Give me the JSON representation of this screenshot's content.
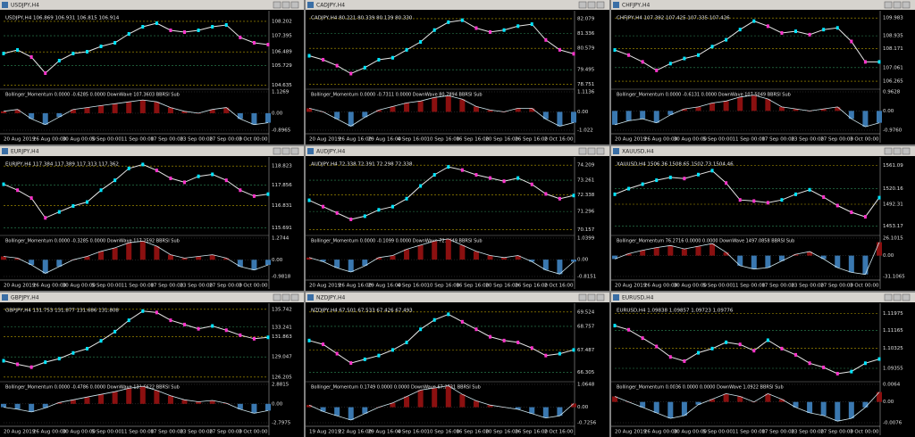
{
  "windows": [
    {
      "title": "USDJPY,H4",
      "header": "USDJPY,H4 106.869 106.931 106.815 106.914",
      "ylim": [
        104.5,
        108.6
      ],
      "yticks": [
        108.202,
        107.395,
        106.489,
        105.729,
        104.635
      ],
      "price": [
        106.4,
        106.6,
        106.2,
        105.3,
        106.0,
        106.4,
        106.5,
        106.8,
        107.0,
        107.5,
        107.9,
        108.1,
        107.7,
        107.6,
        107.7,
        107.9,
        108.0,
        107.3,
        107.0,
        106.9
      ],
      "indicator_header": "Bollinger_Momentum 0.0000 -0.6285 0.0000 DownWave 107.3603 BBRSI Sub",
      "indicator_ticks": [
        1.1269,
        {
          "value": 0,
          "label": "0.00"
        },
        -0.8965
      ],
      "momentum": [
        0.1,
        0.2,
        -0.3,
        -0.6,
        -0.2,
        0.2,
        0.3,
        0.4,
        0.5,
        0.6,
        0.7,
        0.6,
        0.3,
        0.1,
        0.0,
        0.2,
        0.3,
        -0.3,
        -0.6,
        -0.5
      ],
      "dates": [
        "20 Aug 2019",
        "26 Aug 00:00",
        "30 Aug 00:00",
        "5 Sep 00:00",
        "11 Sep 00:00",
        "17 Sep 00:00",
        "23 Sep 00:00",
        "27 Sep 00:00",
        "3 Oct 00:00"
      ]
    },
    {
      "title": "CADJPY,H4",
      "header": "CADJPY,H4 80.221 80.339 80.139 80.330",
      "ylim": [
        78.6,
        82.3
      ],
      "yticks": [
        82.079,
        81.336,
        80.579,
        79.495,
        78.751
      ],
      "price": [
        80.2,
        80.0,
        79.7,
        79.3,
        79.6,
        80.0,
        80.1,
        80.5,
        80.9,
        81.5,
        81.9,
        82.0,
        81.6,
        81.4,
        81.5,
        81.7,
        81.8,
        81.0,
        80.5,
        80.3
      ],
      "indicator_header": "Bollinger_Momentum 0.0000 -0.7311 0.0000 DownWave 80.7894 BBRSI Sub",
      "indicator_ticks": [
        1.1136,
        {
          "value": 0,
          "label": "0.00"
        },
        -1.022
      ],
      "momentum": [
        0.2,
        0.0,
        -0.4,
        -0.8,
        -0.3,
        0.1,
        0.3,
        0.5,
        0.6,
        0.8,
        0.9,
        0.7,
        0.3,
        0.1,
        0.0,
        0.2,
        0.2,
        -0.4,
        -0.8,
        -0.6
      ],
      "dates": [
        "20 Aug 2019",
        "26 Aug 16:00",
        "29 Aug 16:00",
        "4 Sep 16:00",
        "10 Sep 16:00",
        "16 Sep 16:00",
        "20 Sep 16:00",
        "26 Sep 16:00",
        "2 Oct 16:00"
      ]
    },
    {
      "title": "CHFJPY,H4",
      "header": "CHFJPY,H4 107.392 107.425 107.335 107.426",
      "ylim": [
        105.9,
        110.2
      ],
      "yticks": [
        109.983,
        108.935,
        108.171,
        107.061,
        106.265
      ],
      "price": [
        108.1,
        107.8,
        107.4,
        106.9,
        107.3,
        107.6,
        107.8,
        108.3,
        108.7,
        109.3,
        109.8,
        109.5,
        109.1,
        109.2,
        109.0,
        109.3,
        109.4,
        108.6,
        107.4,
        107.4
      ],
      "indicator_header": "Bollinger_Momentum 0.0000 -0.6131 0.0000 DownWave 107.5049 BBRSI Sub",
      "indicator_ticks": [
        0.9628,
        {
          "value": 0,
          "label": "0.00"
        },
        {
          "value": -0.976,
          "label": "-0.9760"
        }
      ],
      "momentum": [
        -0.7,
        -0.5,
        -0.4,
        -0.6,
        -0.2,
        0.1,
        0.2,
        0.4,
        0.5,
        0.7,
        0.8,
        0.6,
        0.2,
        0.1,
        0.0,
        0.1,
        0.2,
        -0.4,
        -0.8,
        -0.6
      ],
      "dates": [
        "20 Aug 2019",
        "26 Aug 00:00",
        "30 Aug 00:00",
        "5 Sep 00:00",
        "11 Sep 00:00",
        "17 Sep 00:00",
        "23 Sep 00:00",
        "27 Sep 00:00",
        "3 Oct 00:00"
      ]
    },
    {
      "title": "EURJPY,H4",
      "header": "EURJPY,H4 117.384 117.389 117.313 117.362",
      "ylim": [
        115.4,
        119.1
      ],
      "yticks": [
        118.823,
        117.856,
        116.831,
        115.691
      ],
      "price": [
        117.9,
        117.6,
        117.2,
        116.2,
        116.5,
        116.8,
        117.0,
        117.6,
        118.1,
        118.7,
        118.9,
        118.6,
        118.2,
        118.0,
        118.3,
        118.4,
        118.1,
        117.6,
        117.3,
        117.4
      ],
      "indicator_header": "Bollinger_Momentum 0.0000 -0.3285 0.0000 DownWave 117.2592 BBRSI Sub",
      "indicator_ticks": [
        1.2744,
        {
          "value": 0,
          "label": "0.00"
        },
        -0.9818
      ],
      "momentum": [
        0.2,
        0.1,
        -0.3,
        -0.8,
        -0.4,
        0.0,
        0.2,
        0.5,
        0.7,
        1.0,
        1.1,
        0.8,
        0.3,
        0.1,
        0.2,
        0.3,
        0.1,
        -0.4,
        -0.6,
        -0.3
      ],
      "dates": [
        "20 Aug 2019",
        "26 Aug 00:00",
        "30 Aug 00:00",
        "5 Sep 00:00",
        "11 Sep 00:00",
        "17 Sep 00:00",
        "23 Sep 00:00",
        "27 Sep 00:00",
        "3 Oct 00:00"
      ]
    },
    {
      "title": "AUDJPY,H4",
      "header": "AUDJPY,H4 72.338 72.391 72.298 72.338",
      "ylim": [
        69.9,
        74.5
      ],
      "yticks": [
        74.209,
        73.261,
        72.338,
        71.296,
        70.157
      ],
      "price": [
        72.0,
        71.6,
        71.2,
        70.8,
        71.0,
        71.4,
        71.6,
        72.1,
        72.9,
        73.6,
        74.1,
        73.9,
        73.6,
        73.4,
        73.2,
        73.4,
        73.0,
        72.4,
        72.1,
        72.3
      ],
      "indicator_header": "Bollinger_Momentum 0.0000 -0.1099 0.0000 DownWave 72.6449 BBRSI Sub",
      "indicator_ticks": [
        1.0399,
        {
          "value": 0,
          "label": "0.00"
        },
        -0.8151
      ],
      "momentum": [
        0.1,
        -0.1,
        -0.4,
        -0.6,
        -0.3,
        0.1,
        0.2,
        0.5,
        0.7,
        0.9,
        1.0,
        0.7,
        0.4,
        0.2,
        0.1,
        0.2,
        -0.1,
        -0.5,
        -0.7,
        -0.1
      ],
      "dates": [
        "20 Aug 2019",
        "26 Aug 16:00",
        "29 Aug 16:00",
        "4 Sep 16:00",
        "10 Sep 16:00",
        "16 Sep 16:00",
        "20 Sep 16:00",
        "26 Sep 16:00",
        "2 Oct 16:00"
      ]
    },
    {
      "title": "XAUUSD,H4",
      "header": "XAUUSD,H4 1506.36 1508.65 1502.73 1504.46",
      "ylim": [
        1440,
        1570
      ],
      "yticks": [
        1561.09,
        1520.16,
        1492.31,
        1453.17
      ],
      "price": [
        1510,
        1520,
        1528,
        1535,
        1540,
        1538,
        1545,
        1552,
        1530,
        1500,
        1498,
        1495,
        1500,
        1510,
        1518,
        1505,
        1490,
        1478,
        1470,
        1504
      ],
      "indicator_header": "Bollinger_Momentum 76.2716 0.0000 0.0000 DownWave 1497.0858 BBRSI Sub",
      "indicator_ticks": [
        26.1015,
        {
          "value": 0,
          "label": "0.00"
        },
        -31.1065
      ],
      "momentum": [
        -5,
        3,
        8,
        12,
        15,
        10,
        14,
        18,
        5,
        -15,
        -20,
        -18,
        -8,
        2,
        6,
        -5,
        -18,
        -25,
        -28,
        20
      ],
      "dates": [
        "20 Aug 2019",
        "26 Aug 00:00",
        "30 Aug 00:00",
        "5 Sep 00:00",
        "11 Sep 00:00",
        "17 Sep 00:00",
        "23 Sep 00:00",
        "27 Sep 00:00",
        "3 Oct 00:00"
      ]
    },
    {
      "title": "GBPJPY,H4",
      "header": "GBPJPY,H4 131.753 131.877 131.686 131.808",
      "ylim": [
        125.8,
        136.1
      ],
      "yticks": [
        135.742,
        133.241,
        131.863,
        129.047,
        126.205
      ],
      "price": [
        128.5,
        128.0,
        127.6,
        128.3,
        128.8,
        129.6,
        130.2,
        131.3,
        132.6,
        134.2,
        135.5,
        135.3,
        134.2,
        133.6,
        133.0,
        133.4,
        132.8,
        132.1,
        131.6,
        131.8
      ],
      "indicator_header": "Bollinger_Momentum 0.0000 -0.4786 0.0000 DownWave 131.6622 BBRSI Sub",
      "indicator_ticks": [
        2.8815,
        {
          "value": 0,
          "label": "0.00"
        },
        -2.7975
      ],
      "momentum": [
        -0.5,
        -0.8,
        -1.2,
        -0.6,
        0.2,
        0.6,
        1.0,
        1.4,
        1.8,
        2.3,
        2.6,
        2.0,
        1.2,
        0.6,
        0.3,
        0.5,
        0.1,
        -0.8,
        -1.4,
        -1.0
      ],
      "dates": [
        "20 Aug 2019",
        "26 Aug 00:00",
        "30 Aug 00:00",
        "5 Sep 00:00",
        "11 Sep 00:00",
        "17 Sep 00:00",
        "23 Sep 00:00",
        "27 Sep 00:00",
        "3 Oct 00:00"
      ]
    },
    {
      "title": "NZDJPY,H4",
      "header": "NZDJPY,H4 67.501 67.533 67.426 67.493",
      "ylim": [
        65.9,
        69.8
      ],
      "yticks": [
        69.524,
        68.757,
        67.487,
        66.305
      ],
      "price": [
        68.0,
        67.8,
        67.3,
        66.8,
        67.0,
        67.2,
        67.5,
        67.9,
        68.6,
        69.1,
        69.4,
        69.0,
        68.6,
        68.2,
        68.0,
        67.9,
        67.6,
        67.2,
        67.3,
        67.5
      ],
      "indicator_header": "Bollinger_Momentum 0.1749 0.0000 0.0000 DownWave 67.2731 BBRSI Sub",
      "indicator_ticks": [
        1.0648,
        {
          "value": 0,
          "label": "0.00"
        },
        -0.7256
      ],
      "momentum": [
        0.1,
        -0.2,
        -0.4,
        -0.6,
        -0.3,
        0.0,
        0.2,
        0.5,
        0.8,
        0.9,
        1.0,
        0.6,
        0.3,
        0.1,
        0.0,
        -0.1,
        -0.3,
        -0.5,
        -0.4,
        0.17
      ],
      "dates": [
        "19 Aug 2019",
        "22 Aug 16:00",
        "29 Aug 16:00",
        "4 Sep 16:00",
        "10 Sep 16:00",
        "16 Sep 16:00",
        "20 Sep 16:00",
        "26 Sep 16:00",
        "2 Oct 16:00"
      ]
    },
    {
      "title": "EURUSD,H4",
      "header": "EURUSD,H4 1.09838 1.09857 1.09723 1.09776",
      "ylim": [
        1.088,
        1.123
      ],
      "yticks": [
        1.11975,
        1.11165,
        1.10325,
        1.09355
      ],
      "price": [
        1.114,
        1.112,
        1.108,
        1.104,
        1.099,
        1.097,
        1.101,
        1.103,
        1.106,
        1.105,
        1.102,
        1.107,
        1.103,
        1.1,
        1.096,
        1.094,
        1.091,
        1.092,
        1.096,
        1.098
      ],
      "indicator_header": "Bollinger_Momentum 0.0036 0.0000 0.0000 DownWave 1.0922 BBRSI Sub",
      "indicator_ticks": [
        0.0064,
        {
          "value": 0,
          "label": "0.00"
        },
        -0.0076
      ],
      "momentum": [
        0.002,
        0.0,
        -0.002,
        -0.004,
        -0.006,
        -0.005,
        -0.001,
        0.001,
        0.003,
        0.002,
        0.0,
        0.003,
        0.001,
        -0.002,
        -0.004,
        -0.005,
        -0.007,
        -0.006,
        -0.002,
        0.0036
      ],
      "dates": [
        "20 Aug 2019",
        "26 Aug 00:00",
        "30 Aug 00:00",
        "5 Sep 00:00",
        "11 Sep 00:00",
        "17 Sep 00:00",
        "23 Sep 00:00",
        "27 Sep 00:00",
        "3 Oct 00:00"
      ]
    }
  ]
}
